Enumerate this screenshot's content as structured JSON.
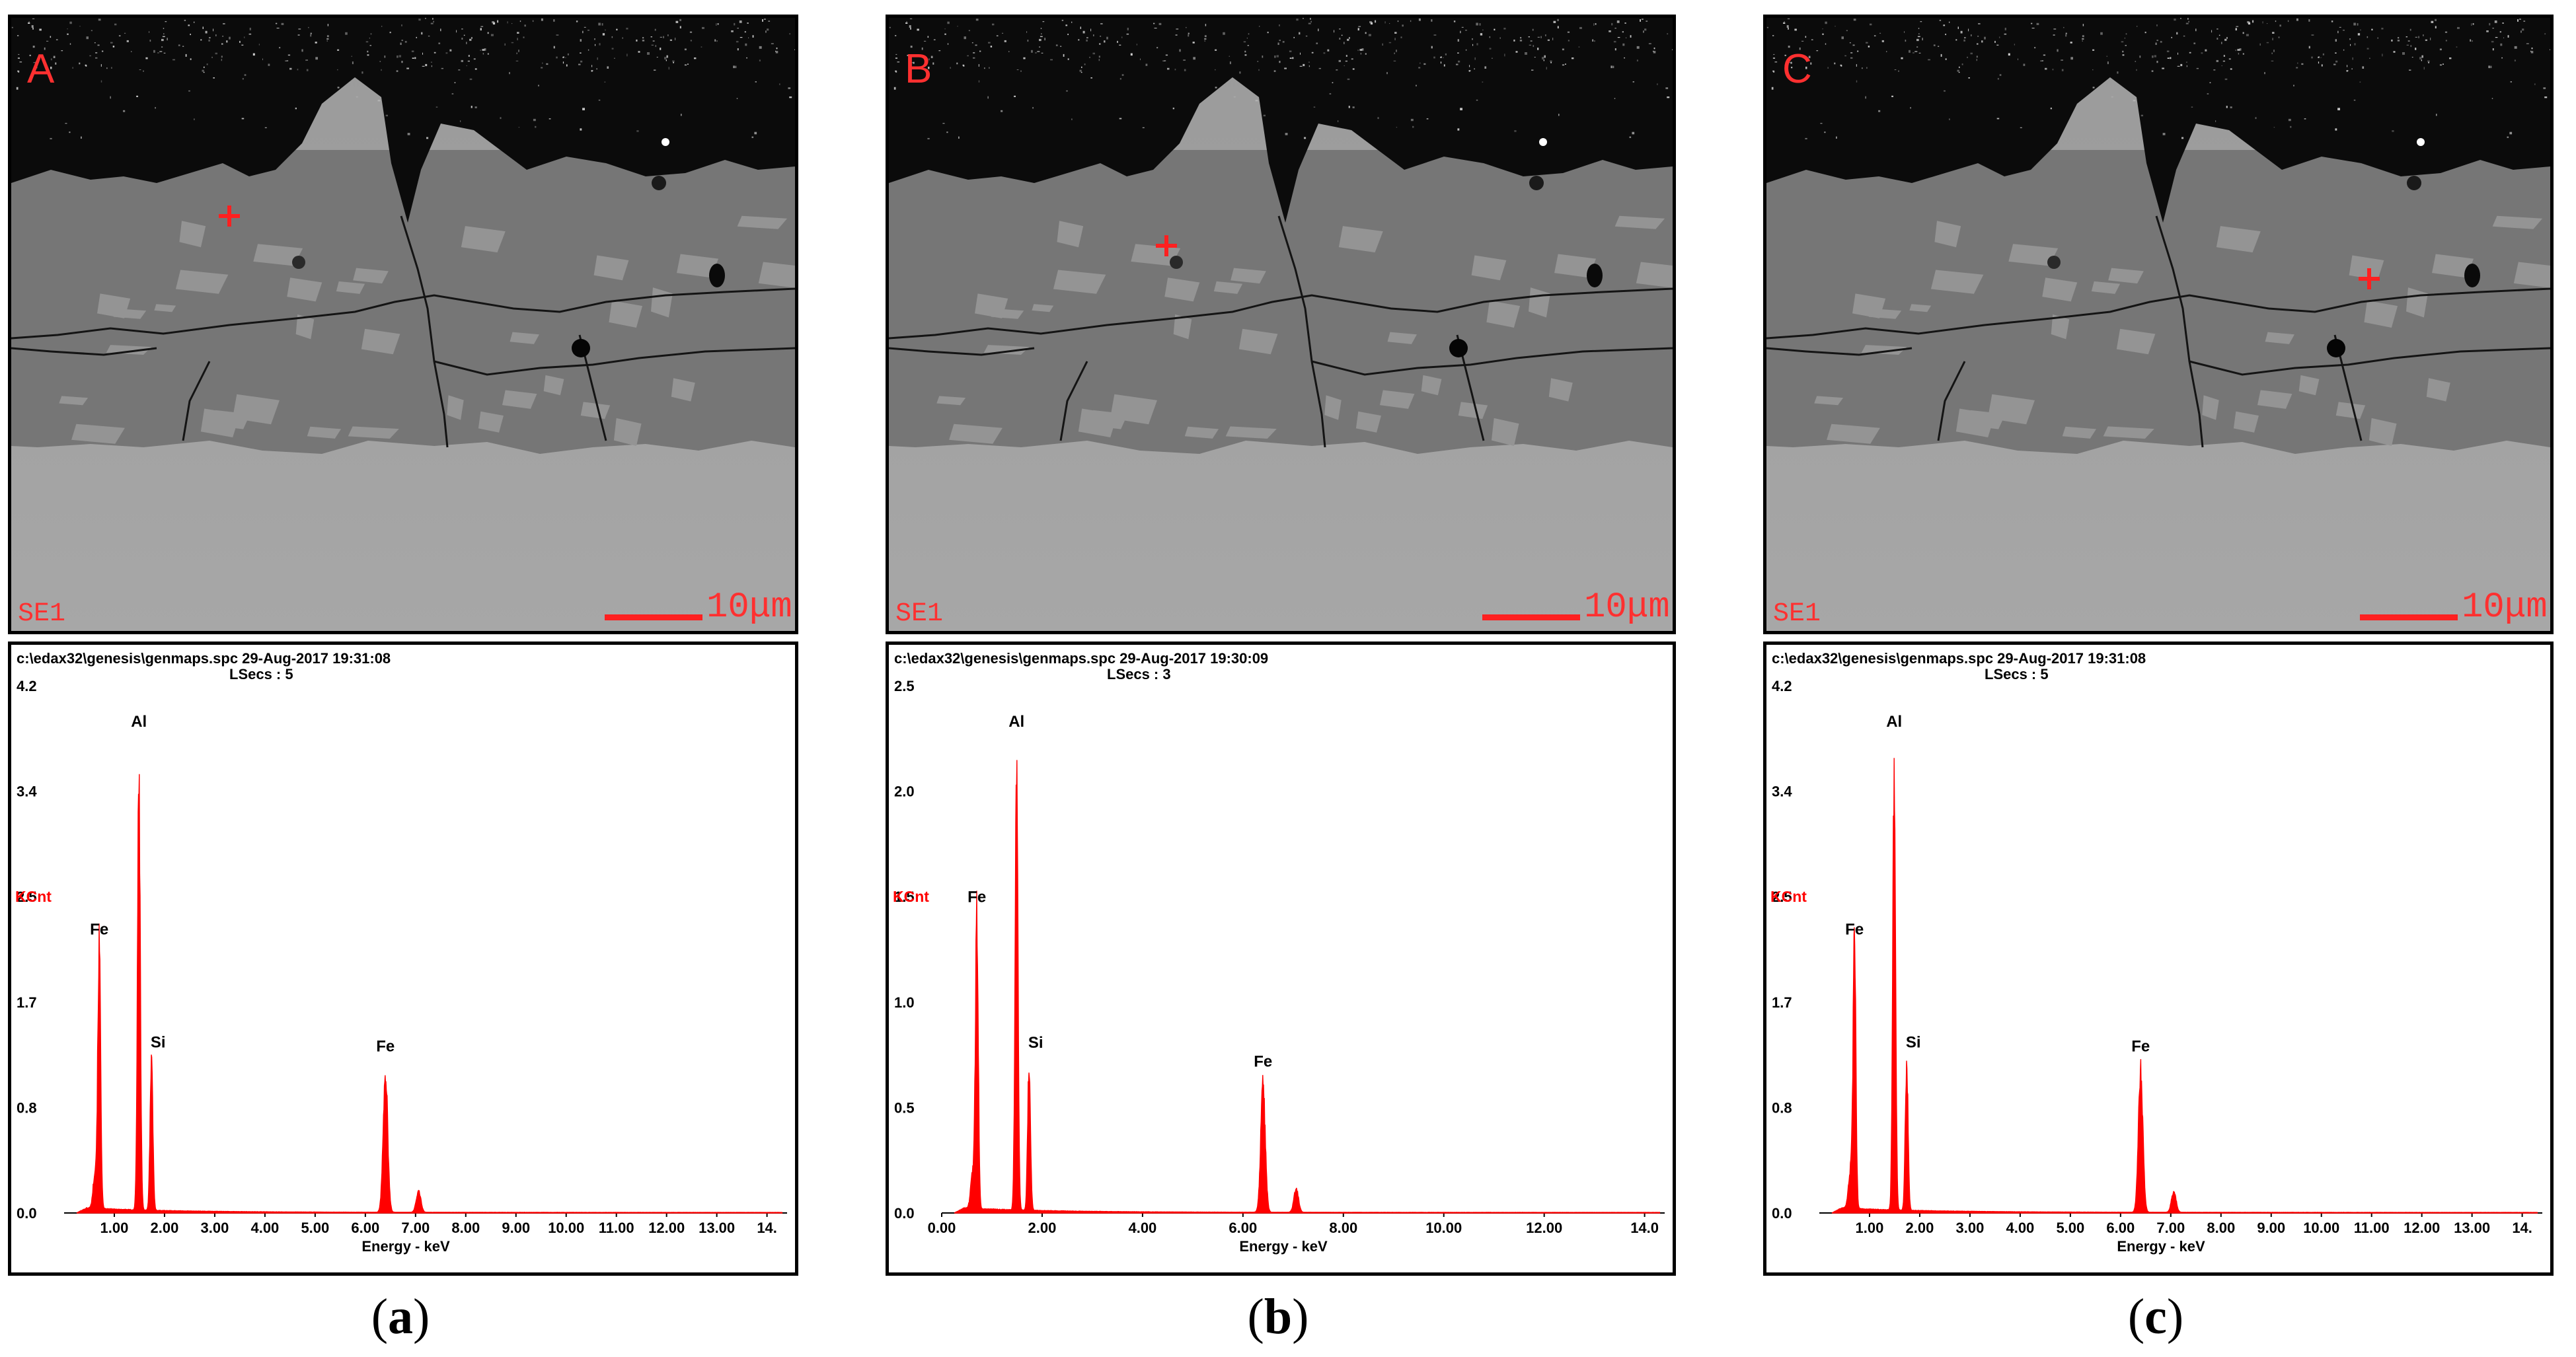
{
  "panels": [
    {
      "image_letter": "A",
      "detector": "SE1",
      "scale_bar": "10μm",
      "header_line1": "c:\\edax32\\genesis\\genmaps.spc  29-Aug-2017 19:31:08",
      "header_line2": "LSecs :  5",
      "caption_open": "(",
      "caption_letter": "a",
      "caption_close": ")"
    },
    {
      "image_letter": "B",
      "detector": "SE1",
      "scale_bar": "10μm",
      "header_line1": "c:\\edax32\\genesis\\genmaps.spc  29-Aug-2017 19:30:09",
      "header_line2": "LSecs :  3",
      "caption_open": "(",
      "caption_letter": "b",
      "caption_close": ")"
    },
    {
      "image_letter": "C",
      "detector": "SE1",
      "scale_bar": "10μm",
      "header_line1": "c:\\edax32\\genesis\\genmaps.spc  29-Aug-2017 19:31:08",
      "header_line2": "LSecs :  5",
      "caption_open": "(",
      "caption_letter": "c",
      "caption_close": ")"
    }
  ],
  "colors": {
    "marker": "#ff2020",
    "spectrum": "#ff0000",
    "ylabel": "#ff0000",
    "text": "#000000"
  },
  "chart_data": [
    {
      "type": "line",
      "xlabel": "Energy - keV",
      "ylabel": "KCnt",
      "xlim": [
        0,
        14.4
      ],
      "ylim": [
        0,
        4.2
      ],
      "x_ticks": [
        "1.00",
        "2.00",
        "3.00",
        "4.00",
        "5.00",
        "6.00",
        "7.00",
        "8.00",
        "9.00",
        "10.00",
        "11.00",
        "12.00",
        "13.00",
        "14."
      ],
      "x_tick_values": [
        1,
        2,
        3,
        4,
        5,
        6,
        7,
        8,
        9,
        10,
        11,
        12,
        13,
        14
      ],
      "y_ticks": [
        "0.0",
        "0.8",
        "1.7",
        "2.5",
        "3.4",
        "4.2"
      ],
      "y_tick_values": [
        0,
        0.84,
        1.68,
        2.52,
        3.36,
        4.2
      ],
      "peaks": [
        {
          "label": "Fe",
          "x": 0.7,
          "y": 2.06
        },
        {
          "label": "Al",
          "x": 1.49,
          "y": 3.43
        },
        {
          "label": "Si",
          "x": 1.74,
          "y": 1.16
        },
        {
          "label": "Fe",
          "x": 6.4,
          "y": 1.13
        },
        {
          "label": "",
          "x": 7.06,
          "y": 0.17
        }
      ]
    },
    {
      "type": "line",
      "xlabel": "Energy - keV",
      "ylabel": "KCnt",
      "xlim": [
        0,
        14.4
      ],
      "ylim": [
        0,
        2.5
      ],
      "x_ticks": [
        "0.00",
        "2.00",
        "4.00",
        "6.00",
        "8.00",
        "10.00",
        "12.00",
        "14.0"
      ],
      "x_tick_values": [
        0,
        2,
        4,
        6,
        8,
        10,
        12,
        14
      ],
      "y_ticks": [
        "0.0",
        "0.5",
        "1.0",
        "1.5",
        "2.0",
        "2.5"
      ],
      "y_tick_values": [
        0,
        0.5,
        1.0,
        1.5,
        2.0,
        2.5
      ],
      "peaks": [
        {
          "label": "Fe",
          "x": 0.7,
          "y": 1.38
        },
        {
          "label": "Al",
          "x": 1.49,
          "y": 2.2
        },
        {
          "label": "Si",
          "x": 1.74,
          "y": 0.69
        },
        {
          "label": "Fe",
          "x": 6.4,
          "y": 0.6
        },
        {
          "label": "",
          "x": 7.06,
          "y": 0.11
        }
      ]
    },
    {
      "type": "line",
      "xlabel": "Energy - keV",
      "ylabel": "KCnt",
      "xlim": [
        0,
        14.4
      ],
      "ylim": [
        0,
        4.2
      ],
      "x_ticks": [
        "1.00",
        "2.00",
        "3.00",
        "4.00",
        "5.00",
        "6.00",
        "7.00",
        "8.00",
        "9.00",
        "10.00",
        "11.00",
        "12.00",
        "13.00",
        "14."
      ],
      "x_tick_values": [
        1,
        2,
        3,
        4,
        5,
        6,
        7,
        8,
        9,
        10,
        11,
        12,
        13,
        14
      ],
      "y_ticks": [
        "0.0",
        "0.8",
        "1.7",
        "2.5",
        "3.4",
        "4.2"
      ],
      "y_tick_values": [
        0,
        0.84,
        1.68,
        2.52,
        3.36,
        4.2
      ],
      "peaks": [
        {
          "label": "Fe",
          "x": 0.7,
          "y": 2.06
        },
        {
          "label": "Al",
          "x": 1.49,
          "y": 3.43
        },
        {
          "label": "Si",
          "x": 1.74,
          "y": 1.16
        },
        {
          "label": "Fe",
          "x": 6.4,
          "y": 1.13
        },
        {
          "label": "",
          "x": 7.06,
          "y": 0.17
        }
      ]
    }
  ]
}
